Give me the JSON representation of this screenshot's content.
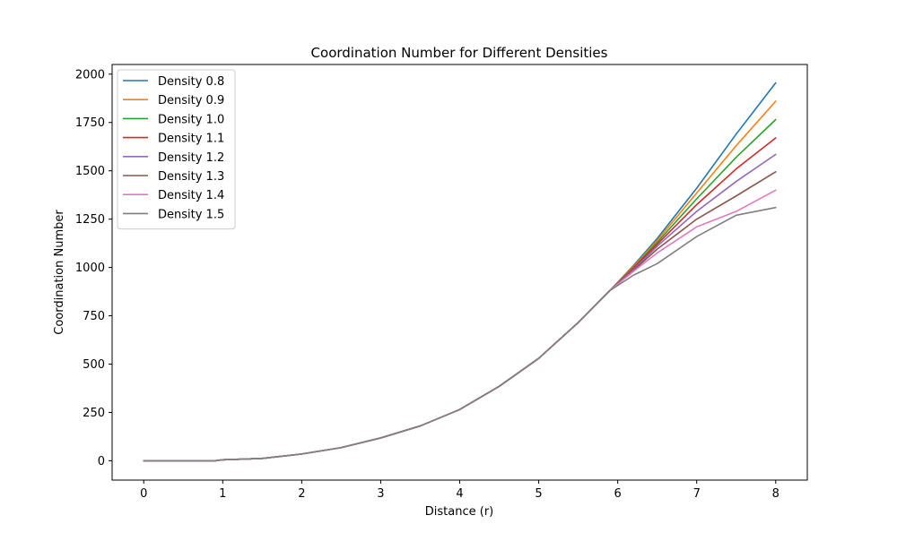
{
  "chart_data": {
    "type": "line",
    "title": "Coordination Number for Different Densities",
    "xlabel": "Distance (r)",
    "ylabel": "Coordination Number",
    "xlim": [
      -0.4,
      8.4
    ],
    "ylim": [
      -100,
      2050
    ],
    "xticks": [
      0,
      1,
      2,
      3,
      4,
      5,
      6,
      7,
      8
    ],
    "yticks": [
      0,
      250,
      500,
      750,
      1000,
      1250,
      1500,
      1750,
      2000
    ],
    "grid": false,
    "legend_position": "upper-left",
    "x": [
      0,
      0.5,
      0.9,
      1.0,
      1.5,
      2.0,
      2.5,
      3.0,
      3.5,
      4.0,
      4.5,
      5.0,
      5.5,
      5.9,
      6.2,
      6.5,
      7.0,
      7.5,
      8.0
    ],
    "series": [
      {
        "name": "Density 0.8",
        "color": "#1f77b4",
        "values": [
          0,
          0,
          0,
          5,
          12,
          35,
          68,
          118,
          180,
          265,
          385,
          530,
          715,
          880,
          1010,
          1150,
          1410,
          1690,
          1955
        ]
      },
      {
        "name": "Density 0.9",
        "color": "#ff7f0e",
        "values": [
          0,
          0,
          0,
          5,
          12,
          35,
          68,
          118,
          180,
          265,
          385,
          530,
          715,
          880,
          1005,
          1140,
          1385,
          1630,
          1860
        ]
      },
      {
        "name": "Density 1.0",
        "color": "#2ca02c",
        "values": [
          0,
          0,
          0,
          5,
          12,
          35,
          68,
          118,
          180,
          265,
          385,
          530,
          715,
          880,
          1000,
          1130,
          1355,
          1570,
          1765
        ]
      },
      {
        "name": "Density 1.1",
        "color": "#d62728",
        "values": [
          0,
          0,
          0,
          5,
          12,
          35,
          68,
          118,
          180,
          265,
          385,
          530,
          715,
          880,
          995,
          1120,
          1325,
          1510,
          1670
        ]
      },
      {
        "name": "Density 1.2",
        "color": "#9467bd",
        "values": [
          0,
          0,
          0,
          5,
          12,
          35,
          68,
          118,
          180,
          265,
          385,
          530,
          715,
          880,
          990,
          1110,
          1290,
          1445,
          1585
        ]
      },
      {
        "name": "Density 1.3",
        "color": "#8c564b",
        "values": [
          0,
          0,
          0,
          5,
          12,
          35,
          68,
          118,
          180,
          265,
          385,
          530,
          715,
          880,
          985,
          1095,
          1250,
          1370,
          1495
        ]
      },
      {
        "name": "Density 1.4",
        "color": "#e377c2",
        "values": [
          0,
          0,
          0,
          5,
          12,
          35,
          68,
          118,
          180,
          265,
          385,
          530,
          715,
          880,
          980,
          1075,
          1210,
          1290,
          1400
        ]
      },
      {
        "name": "Density 1.5",
        "color": "#7f7f7f",
        "values": [
          0,
          0,
          0,
          5,
          12,
          35,
          68,
          118,
          180,
          265,
          385,
          530,
          715,
          880,
          960,
          1020,
          1160,
          1270,
          1310
        ]
      }
    ]
  }
}
